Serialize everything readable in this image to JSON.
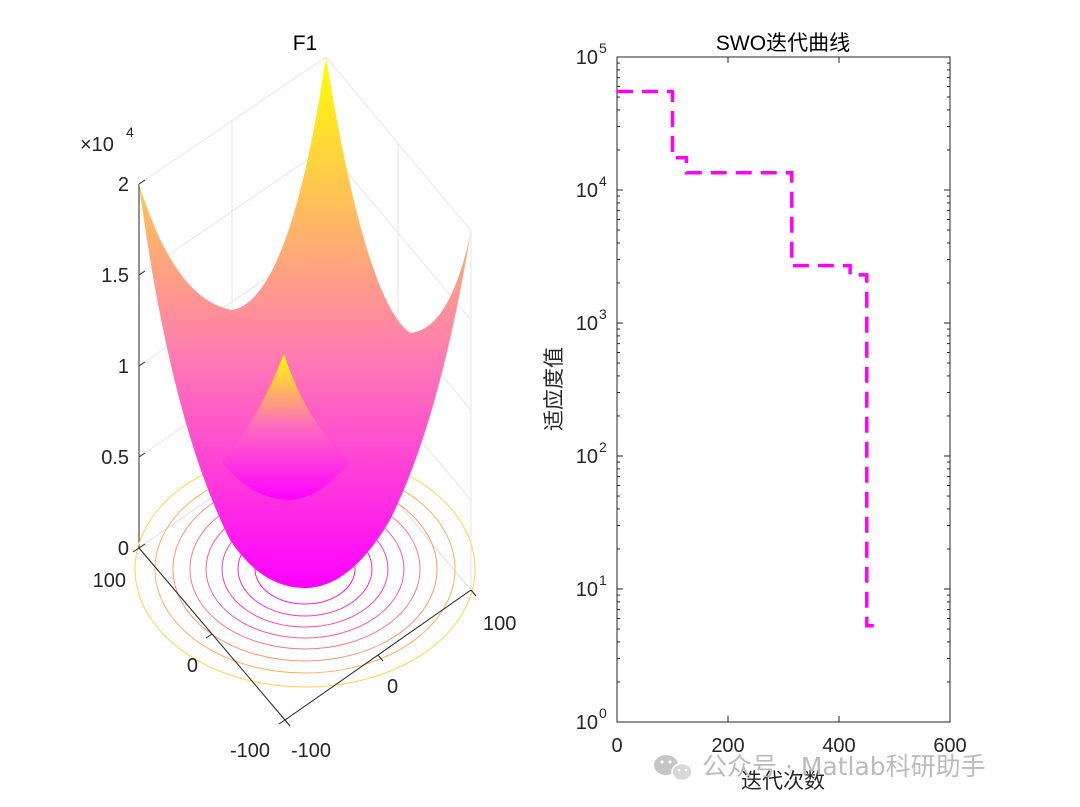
{
  "chart_data": [
    {
      "type": "surface",
      "title": "F1",
      "function": "sum of squares (x^2 + y^2)",
      "x_range": [
        -100,
        100
      ],
      "y_range": [
        -100,
        100
      ],
      "z_multiplier_label": "×10",
      "z_multiplier_exponent": "4",
      "z_ticks": [
        "0",
        "0.5",
        "1",
        "1.5",
        "2"
      ],
      "x_ticks": [
        "-100",
        "0",
        "100"
      ],
      "y_ticks": [
        "-100",
        "0",
        "100"
      ],
      "z_lim": [
        0,
        20000
      ],
      "colormap": [
        "#ff00ff",
        "#ffff00"
      ],
      "has_contour_base": true
    },
    {
      "type": "line",
      "title": "SWO迭代曲线",
      "xlabel": "迭代次数",
      "ylabel": "适应度值",
      "yscale": "log",
      "xlim": [
        0,
        600
      ],
      "ylim": [
        1,
        100000
      ],
      "x_ticks": [
        0,
        200,
        400,
        600
      ],
      "y_tick_base": "10",
      "y_tick_exponents": [
        "0",
        "1",
        "2",
        "3",
        "4",
        "5"
      ],
      "line_color": "#ff00ff",
      "line_style": "dashed",
      "series": [
        {
          "name": "SWO",
          "x": [
            0,
            100,
            100,
            125,
            125,
            315,
            315,
            420,
            420,
            450,
            450,
            475
          ],
          "y": [
            55000,
            55000,
            17500,
            17500,
            13500,
            13500,
            2700,
            2700,
            2300,
            2300,
            5.3,
            5.3
          ]
        }
      ]
    }
  ],
  "watermark": {
    "icon": "wechat-icon",
    "text": "公众号 · Matlab科研助手"
  }
}
